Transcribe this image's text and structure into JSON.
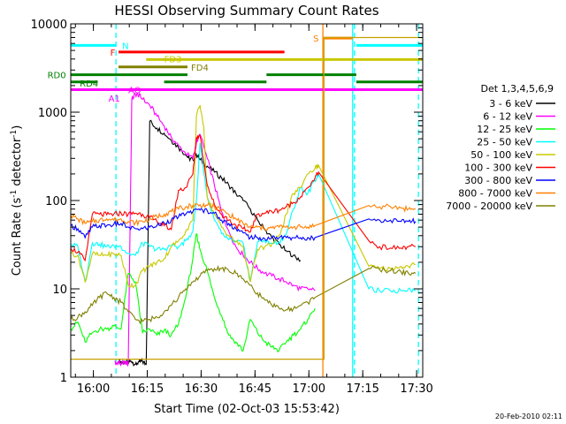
{
  "chart_data": {
    "type": "line",
    "title": "HESSI Observing Summary Count Rates",
    "xlabel": "Start Time (02-Oct-03 15:53:42)",
    "ylabel": "Count Rate (s⁻¹ detector⁻¹)",
    "ylabel_main": "Count Rate (s",
    "ylabel_sup1": "-1",
    "ylabel_mid": " detector",
    "ylabel_sup2": "-1",
    "ylabel_end": ")",
    "x_scale": "linear",
    "x_units": "minutes after 15:53:42",
    "xlim": [
      0,
      98
    ],
    "y_scale": "log",
    "ylim": [
      1,
      10000
    ],
    "x_ticks": [
      {
        "value": 6.3,
        "label": "16:00"
      },
      {
        "value": 21.3,
        "label": "16:15"
      },
      {
        "value": 36.3,
        "label": "16:30"
      },
      {
        "value": 51.3,
        "label": "16:45"
      },
      {
        "value": 66.3,
        "label": "17:00"
      },
      {
        "value": 81.3,
        "label": "17:15"
      },
      {
        "value": 96.3,
        "label": "17:30"
      }
    ],
    "y_ticks": [
      {
        "value": 1,
        "label": "1"
      },
      {
        "value": 10,
        "label": "10"
      },
      {
        "value": 100,
        "label": "100"
      },
      {
        "value": 1000,
        "label": "1000"
      },
      {
        "value": 10000,
        "label": "10000"
      }
    ],
    "legend": {
      "placement": "right",
      "title": "Det 1,3,4,5,6,9",
      "entries": [
        {
          "label": "3 - 6 keV",
          "color": "#000000"
        },
        {
          "label": "6 - 12 keV",
          "color": "#ff00ff"
        },
        {
          "label": "12 - 25 keV",
          "color": "#00ff00"
        },
        {
          "label": "25 - 50 keV",
          "color": "#00ffff"
        },
        {
          "label": "50 - 100 keV",
          "color": "#c8c800"
        },
        {
          "label": "100 - 300 keV",
          "color": "#ff0000"
        },
        {
          "label": "300 - 800 keV",
          "color": "#0000ff"
        },
        {
          "label": "800 - 7000 keV",
          "color": "#ff8000"
        },
        {
          "label": "7000 - 20000 keV",
          "color": "#808000"
        }
      ]
    },
    "series": [
      {
        "name": "3 - 6 keV",
        "color": "#000000",
        "x": [
          13.5,
          14.0,
          14.8,
          16.0,
          17.0,
          18.0,
          19.0,
          20.0,
          21.0,
          22.0,
          24.0,
          26.0,
          28.0,
          30.0,
          32.0,
          33.0,
          34.0,
          35.0,
          36.0,
          38.0,
          40.0,
          42.0,
          44.0,
          46.0,
          48.0,
          50.0,
          52.0,
          54.0,
          56.0,
          58.0,
          60.0,
          62.0,
          64.0
        ],
        "y": [
          1.5,
          1.5,
          1.4,
          1.5,
          1.5,
          1.4,
          1.5,
          1.5,
          1.4,
          790,
          660,
          580,
          480,
          400,
          330,
          300,
          290,
          330,
          290,
          245,
          210,
          180,
          150,
          120,
          100,
          80,
          60,
          47,
          38,
          32,
          27,
          24,
          21
        ]
      },
      {
        "name": "6 - 12 keV",
        "color": "#ff00ff",
        "x": [
          12.3,
          12.6,
          13.3,
          14.0,
          15.0,
          16.0,
          17.0,
          18.0,
          19.0,
          20.0,
          22.0,
          24.0,
          26.0,
          28.0,
          30.0,
          32.0,
          34.0,
          35.0,
          36.0,
          38.0,
          40.0,
          42.0,
          44.0,
          46.0,
          48.0,
          50.0,
          52.0,
          54.0,
          56.0,
          58.0,
          60.0,
          62.0,
          64.0,
          66.0,
          68.0
        ],
        "y": [
          1.5,
          1.4,
          1.5,
          1.4,
          1.5,
          1.4,
          1400,
          1600,
          1550,
          1400,
          1200,
          900,
          700,
          520,
          420,
          340,
          300,
          450,
          560,
          300,
          150,
          75,
          45,
          30,
          24,
          20,
          17,
          15,
          14,
          13,
          12,
          11,
          10,
          10,
          9.5
        ]
      },
      {
        "name": "12 - 25 keV",
        "color": "#00ff00",
        "x": [
          0,
          2,
          4,
          6,
          8,
          10,
          12,
          14,
          16,
          18,
          20,
          22,
          24,
          26,
          28,
          30,
          32,
          34,
          35,
          36,
          38,
          40,
          42,
          44,
          46,
          48,
          50,
          52,
          54,
          56,
          58,
          60,
          62,
          64,
          66,
          68
        ],
        "y": [
          3.5,
          4.2,
          2.5,
          3.2,
          3.5,
          3.5,
          3.8,
          3.5,
          15,
          12,
          3.2,
          3.5,
          3.0,
          3.4,
          3.0,
          4.0,
          8,
          22,
          42,
          28,
          16,
          8,
          5,
          3,
          2.5,
          2,
          4.5,
          3.2,
          2.5,
          2.2,
          2,
          2.5,
          3.0,
          3.5,
          4.5,
          6
        ]
      },
      {
        "name": "25 - 50 keV",
        "color": "#00ffff",
        "x": [
          0,
          2,
          4,
          6,
          8,
          10,
          12,
          14,
          16,
          18,
          20,
          22,
          24,
          26,
          28,
          30,
          32,
          34,
          35,
          36,
          38,
          40,
          42,
          44,
          46,
          48,
          50,
          52,
          54,
          56,
          58,
          60,
          62,
          64,
          66,
          68,
          69,
          83,
          86,
          89,
          92,
          94,
          96
        ],
        "y": [
          32,
          30,
          12,
          33,
          32,
          30,
          31,
          30,
          25,
          24,
          33,
          30,
          28,
          28,
          31,
          30,
          35,
          45,
          100,
          450,
          110,
          60,
          42,
          36,
          34,
          33,
          12,
          34,
          35,
          33,
          34,
          42,
          80,
          140,
          120,
          170,
          200,
          10,
          9.5,
          9.5,
          9.5,
          10,
          9.5
        ]
      },
      {
        "name": "50 - 100 keV",
        "color": "#c8c800",
        "x": [
          0,
          2,
          4,
          6,
          8,
          10,
          12,
          14,
          16,
          18,
          20,
          22,
          24,
          26,
          28,
          30,
          32,
          34,
          35,
          36,
          37,
          38,
          40,
          42,
          44,
          46,
          48,
          50,
          52,
          54,
          56,
          58,
          60,
          62,
          64,
          66,
          68,
          69,
          83,
          86,
          89,
          92,
          94,
          96
        ],
        "y": [
          25,
          24,
          12,
          25,
          24,
          24,
          25,
          24,
          11,
          11,
          16,
          18,
          20,
          22,
          30,
          35,
          45,
          60,
          900,
          1200,
          700,
          110,
          70,
          50,
          40,
          34,
          30,
          12,
          28,
          30,
          32,
          40,
          70,
          120,
          140,
          200,
          230,
          250,
          18,
          17,
          17,
          18,
          18,
          19
        ]
      },
      {
        "name": "100 - 300 keV",
        "color": "#ff0000",
        "x": [
          0,
          2,
          4,
          6,
          8,
          10,
          12,
          14,
          16,
          18,
          20,
          22,
          24,
          26,
          28,
          30,
          32,
          34,
          35,
          36,
          38,
          40,
          42,
          44,
          46,
          48,
          50,
          52,
          54,
          56,
          58,
          60,
          62,
          64,
          66,
          68,
          69,
          83,
          86,
          89,
          92,
          94,
          96
        ],
        "y": [
          29,
          26,
          21,
          70,
          70,
          69,
          70,
          72,
          70,
          72,
          70,
          64,
          58,
          52,
          47,
          130,
          140,
          200,
          520,
          540,
          150,
          90,
          70,
          60,
          52,
          48,
          44,
          70,
          72,
          75,
          78,
          85,
          95,
          110,
          140,
          180,
          210,
          35,
          30,
          29,
          29,
          30,
          30
        ]
      },
      {
        "name": "300 - 800 keV",
        "color": "#0000ff",
        "x": [
          0,
          2,
          4,
          6,
          8,
          10,
          12,
          14,
          16,
          18,
          20,
          22,
          24,
          26,
          28,
          30,
          32,
          34,
          36,
          38,
          40,
          42,
          44,
          46,
          48,
          50,
          52,
          54,
          56,
          58,
          60,
          62,
          64,
          66,
          68,
          83,
          86,
          89,
          92,
          94,
          96
        ],
        "y": [
          52,
          48,
          38,
          50,
          52,
          52,
          54,
          55,
          50,
          48,
          48,
          50,
          52,
          56,
          60,
          65,
          70,
          75,
          78,
          77,
          72,
          60,
          55,
          48,
          43,
          38,
          38,
          37,
          38,
          38,
          38,
          38,
          38,
          38,
          38,
          62,
          60,
          60,
          58,
          58,
          58
        ]
      },
      {
        "name": "800 - 7000 keV",
        "color": "#ff8000",
        "x": [
          0,
          2,
          4,
          6,
          8,
          10,
          12,
          14,
          16,
          18,
          20,
          22,
          24,
          26,
          28,
          30,
          32,
          34,
          36,
          38,
          40,
          42,
          44,
          46,
          48,
          50,
          52,
          54,
          56,
          58,
          60,
          62,
          64,
          66,
          68,
          83,
          86,
          89,
          92,
          94,
          96
        ],
        "y": [
          68,
          62,
          55,
          58,
          60,
          62,
          60,
          62,
          58,
          56,
          58,
          62,
          66,
          70,
          75,
          80,
          85,
          88,
          90,
          88,
          85,
          78,
          70,
          62,
          55,
          50,
          50,
          48,
          49,
          50,
          50,
          50,
          50,
          50,
          52,
          88,
          85,
          85,
          82,
          80,
          80
        ]
      },
      {
        "name": "7000 - 20000 keV",
        "color": "#808000",
        "x": [
          0,
          2,
          4,
          6,
          8,
          10,
          12,
          14,
          16,
          18,
          20,
          22,
          24,
          26,
          28,
          30,
          32,
          34,
          36,
          38,
          40,
          42,
          44,
          46,
          48,
          50,
          52,
          54,
          56,
          58,
          60,
          62,
          64,
          66,
          68,
          83,
          86,
          89,
          92,
          94,
          96
        ],
        "y": [
          4.5,
          4.8,
          5.5,
          6.5,
          8,
          9,
          8,
          7,
          5.5,
          4.5,
          4.3,
          4.5,
          4.8,
          5.5,
          6.5,
          8,
          10,
          12,
          14,
          16,
          17,
          17,
          16,
          15,
          13,
          11,
          9,
          7.5,
          6.5,
          6,
          5.8,
          6,
          6.5,
          7,
          8,
          17,
          16.5,
          16,
          15.5,
          15,
          15
        ]
      }
    ],
    "attenuator_line": {
      "name": "attenuator",
      "color": "#c8a000",
      "x": [
        0,
        13.5,
        21.0,
        56.0,
        70.5,
        70.5,
        98
      ],
      "y": [
        1.6,
        1.6,
        1.6,
        1.6,
        1.6,
        7000,
        7000
      ]
    },
    "vertical_markers": [
      {
        "x": 12.6,
        "color": "#00ffff",
        "style": "dashed"
      },
      {
        "x": 79.0,
        "color": "#00ffff",
        "style": "dashed"
      },
      {
        "x": 96.8,
        "color": "#00ffff",
        "style": "dashed"
      },
      {
        "x": 70.2,
        "color": "#ff8000",
        "style": "solid"
      },
      {
        "x": 78.5,
        "color": "#00ffff",
        "style": "solid"
      }
    ],
    "flag_bars": [
      {
        "label": "N",
        "color": "#00ffff",
        "segments": [
          [
            0,
            12.6
          ],
          [
            79.5,
            98
          ]
        ],
        "y": 5700
      },
      {
        "label": "S",
        "color": "#ff8000",
        "segments": [
          [
            70.2,
            78.5
          ]
        ],
        "y": 6900
      },
      {
        "label": "F",
        "color": "#ff0000",
        "segments": [
          [
            13.3,
            59.5
          ]
        ],
        "y": 4800
      },
      {
        "label": "FD3",
        "color": "#c8c800",
        "segments": [
          [
            21.0,
            98
          ]
        ],
        "y": 3950
      },
      {
        "label": "FD4",
        "color": "#808000",
        "segments": [
          [
            13.3,
            32.5
          ]
        ],
        "y": 3250
      },
      {
        "label": "RD0",
        "color": "#008000",
        "segments": [
          [
            0,
            32.5
          ],
          [
            54.5,
            79.5
          ]
        ],
        "y": 2650
      },
      {
        "label": "RD4",
        "color": "#008000",
        "segments": [
          [
            0,
            7.5
          ],
          [
            26.0,
            54.5
          ],
          [
            79.5,
            98
          ]
        ],
        "y": 2200
      },
      {
        "label": "AO",
        "color": "#ff00ff",
        "segments": [
          [
            0,
            98
          ]
        ],
        "y": 1800
      }
    ],
    "flag_labels": [
      {
        "text": "N",
        "x": 14.3,
        "y": 5700,
        "color": "#00ffff"
      },
      {
        "text": "S",
        "x": 67.5,
        "y": 6900,
        "color": "#ff8000"
      },
      {
        "text": "F",
        "x": 11.0,
        "y": 4800,
        "color": "#ff0000"
      },
      {
        "text": "FD3",
        "x": 26.0,
        "y": 4050,
        "color": "#c8c800"
      },
      {
        "text": "FD4",
        "x": 33.5,
        "y": 3250,
        "color": "#808000"
      },
      {
        "text": "RD0",
        "x": -6.5,
        "y": 2650,
        "color": "#008000"
      },
      {
        "text": "RD4",
        "x": 2.5,
        "y": 2150,
        "color": "#008000"
      },
      {
        "text": "AO",
        "x": 16.0,
        "y": 1800,
        "color": "#ff00ff"
      },
      {
        "text": "A1",
        "x": 10.5,
        "y": 1450,
        "color": "#ff00ff"
      }
    ]
  },
  "footer": {
    "timestamp": "20-Feb-2010 02:11"
  }
}
